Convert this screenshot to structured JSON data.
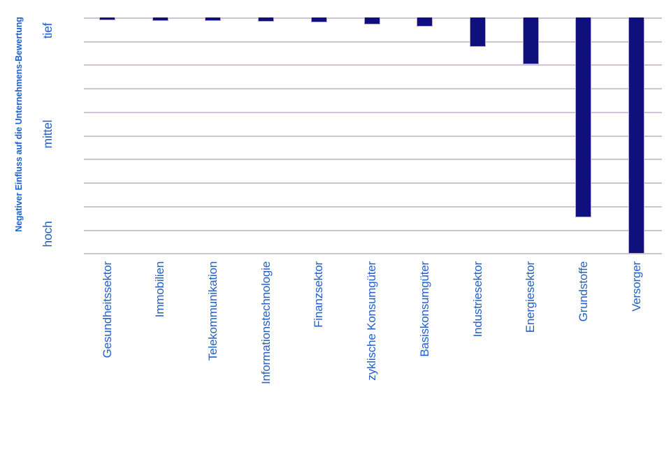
{
  "chart_data": {
    "type": "bar",
    "title": "",
    "xlabel": "",
    "ylabel": "Negativer Einfluss auf die Unternehmens-Bewertung",
    "categories": [
      "Gesundheitssektor",
      "Immobilien",
      "Telekommunikation",
      "Informationstechnologie",
      "Finanzsektor",
      "zyklische Konsumgüter",
      "Basiskonsumgüter",
      "Industriesektor",
      "Energiesektor",
      "Grundstoffe",
      "Versorger"
    ],
    "values": [
      0.09,
      0.12,
      0.13,
      0.16,
      0.19,
      0.28,
      0.36,
      1.22,
      1.96,
      8.45,
      10
    ],
    "value_meaning": "depth of bar below the zero line in gridline units; 0 = tief (low negative impact), 10 = beyond hoch (high negative impact)",
    "bars_direction": "downward from top zero line",
    "y_ticks": [
      {
        "label": "tief",
        "pos": 0.53
      },
      {
        "label": "mittel",
        "pos": 4.92
      },
      {
        "label": "hoch",
        "pos": 9.15
      }
    ],
    "ylim": [
      0,
      10
    ],
    "gridline_count": 11,
    "grid": true,
    "legend": "none",
    "colors": {
      "bar": "#10107C",
      "bar_border": "#B9A8C9",
      "grid": "#D1C2D4",
      "text": "#2260C8"
    }
  }
}
